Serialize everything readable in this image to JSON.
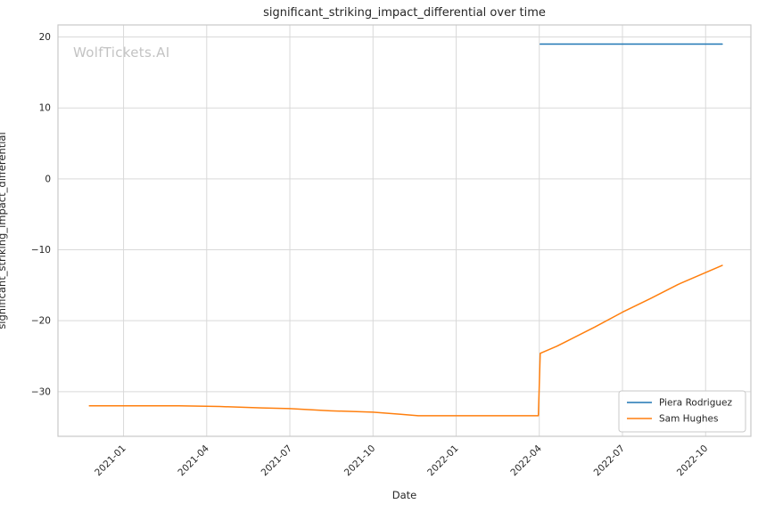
{
  "chart_data": {
    "type": "line",
    "title": "significant_striking_impact_differential over time",
    "xlabel": "Date",
    "ylabel": "significant_striking_impact_differential",
    "watermark": "WolfTickets.AI",
    "grid": true,
    "legend_position": "lower right",
    "background_color": "#ffffff",
    "grid_color": "#d9d9d9",
    "border_color": "#c9c9c9",
    "text_color": "#262626",
    "xlim": [
      "2020-10-20",
      "2022-11-20"
    ],
    "ylim": [
      -36.3,
      21.7
    ],
    "xticks": [
      "2021-01",
      "2021-04",
      "2021-07",
      "2021-10",
      "2022-01",
      "2022-04",
      "2022-07",
      "2022-10"
    ],
    "yticks": [
      -30,
      -20,
      -10,
      0,
      10,
      20
    ],
    "series": [
      {
        "name": "Piera Rodriguez",
        "color": "#1f77b4",
        "points": [
          [
            "2022-04-02",
            19.0
          ],
          [
            "2022-10-19",
            19.0
          ]
        ]
      },
      {
        "name": "Sam Hughes",
        "color": "#ff7f0e",
        "points": [
          [
            "2020-11-24",
            -32.0
          ],
          [
            "2021-01-01",
            -32.0
          ],
          [
            "2021-03-01",
            -32.0
          ],
          [
            "2021-04-15",
            -32.1
          ],
          [
            "2021-06-01",
            -32.3
          ],
          [
            "2021-07-01",
            -32.4
          ],
          [
            "2021-08-15",
            -32.7
          ],
          [
            "2021-10-01",
            -32.9
          ],
          [
            "2021-11-01",
            -33.2
          ],
          [
            "2021-11-20",
            -33.4
          ],
          [
            "2022-01-01",
            -33.4
          ],
          [
            "2022-02-15",
            -33.4
          ],
          [
            "2022-03-30",
            -33.4
          ],
          [
            "2022-04-02",
            -24.6
          ],
          [
            "2022-04-20",
            -23.6
          ],
          [
            "2022-06-01",
            -20.9
          ],
          [
            "2022-07-01",
            -18.8
          ],
          [
            "2022-08-01",
            -16.9
          ],
          [
            "2022-09-01",
            -14.9
          ],
          [
            "2022-10-19",
            -12.2
          ]
        ]
      }
    ]
  }
}
